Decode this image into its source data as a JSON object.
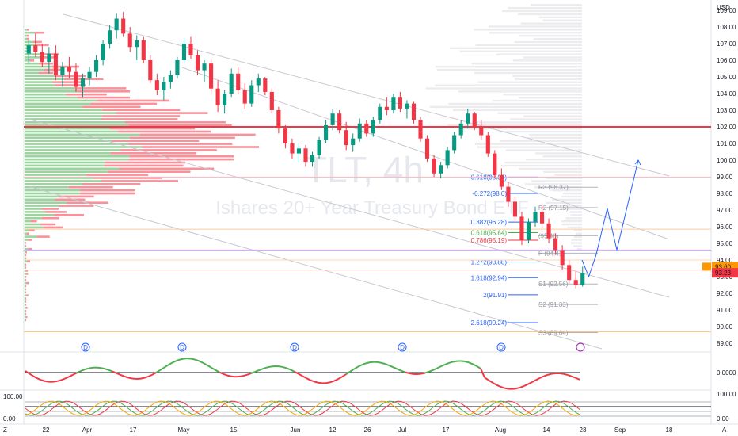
{
  "chart_data": {
    "type": "candlestick",
    "symbol_watermark": "TLT, 4h",
    "name_watermark": "Ishares 20+ Year Treasury Bond ETF",
    "currency": "USD",
    "price_ticks": [
      109.0,
      108.0,
      107.0,
      106.0,
      105.0,
      104.0,
      103.0,
      102.0,
      101.0,
      100.0,
      99.0,
      98.0,
      97.0,
      96.0,
      95.0,
      94.0,
      93.0,
      92.0,
      91.0,
      90.0,
      89.0
    ],
    "ylim": [
      88.5,
      110.0
    ],
    "time_labels": [
      "22",
      "Apr",
      "17",
      "May",
      "15",
      "Jun",
      "12",
      "26",
      "Jul",
      "17",
      "Aug",
      "14",
      "23",
      "Sep",
      "18"
    ],
    "time_label_positions_index": [
      0,
      1,
      2,
      3,
      4,
      5,
      6,
      7,
      8,
      9,
      10,
      11,
      12,
      13,
      14
    ],
    "resistance_line": 102.0,
    "last_price": 93.23,
    "pre_label": "93.60",
    "fib_levels": [
      {
        "label": "-0.618(98.98)",
        "value": 98.98,
        "color": "#2962ff"
      },
      {
        "label": "-0.272(98.0)",
        "value": 98.0,
        "color": "#2962ff"
      },
      {
        "label": "0.382(96.28)",
        "value": 96.28,
        "color": "#2962ff"
      },
      {
        "label": "0.618(95.64)",
        "value": 95.64,
        "color": "#4caf50"
      },
      {
        "label": "0.786(95.19)",
        "value": 95.19,
        "color": "#f23645"
      },
      {
        "label": "1.272(93.88)",
        "value": 93.88,
        "color": "#2962ff"
      },
      {
        "label": "1.618(92.94)",
        "value": 92.94,
        "color": "#2962ff"
      },
      {
        "label": "2(91.91)",
        "value": 91.91,
        "color": "#2962ff"
      },
      {
        "label": "2.618(90.24)",
        "value": 90.24,
        "color": "#2962ff"
      }
    ],
    "pivots": [
      {
        "label": "R3 (98.37)",
        "value": 98.37
      },
      {
        "label": "R2 (97.15)",
        "value": 97.15
      },
      {
        "label": "(95.46)",
        "value": 95.46
      },
      {
        "label": "P (94.41)",
        "value": 94.41
      },
      {
        "label": "S1 (92.56)",
        "value": 92.56
      },
      {
        "label": "S2 (91.33)",
        "value": 91.33
      },
      {
        "label": "S3 (89.64)",
        "value": 89.64
      }
    ],
    "candles": [
      [
        106.4,
        107.2,
        105.8,
        106.9
      ],
      [
        106.9,
        107.6,
        106.2,
        106.5
      ],
      [
        106.5,
        107.0,
        105.6,
        105.9
      ],
      [
        105.9,
        106.8,
        105.2,
        106.4
      ],
      [
        106.4,
        106.9,
        104.8,
        105.1
      ],
      [
        105.1,
        105.9,
        104.4,
        105.6
      ],
      [
        105.6,
        106.2,
        104.9,
        105.3
      ],
      [
        105.3,
        105.8,
        104.1,
        104.4
      ],
      [
        104.4,
        105.2,
        103.8,
        104.9
      ],
      [
        104.9,
        105.6,
        104.5,
        105.3
      ],
      [
        105.3,
        106.3,
        105.0,
        106.0
      ],
      [
        106.0,
        107.2,
        105.7,
        107.0
      ],
      [
        107.0,
        108.1,
        106.7,
        107.8
      ],
      [
        107.8,
        108.8,
        107.3,
        108.5
      ],
      [
        108.5,
        108.9,
        107.4,
        107.6
      ],
      [
        107.6,
        108.0,
        106.5,
        106.8
      ],
      [
        106.8,
        107.5,
        106.0,
        107.2
      ],
      [
        107.2,
        107.4,
        105.8,
        106.0
      ],
      [
        106.0,
        106.3,
        104.6,
        104.8
      ],
      [
        104.8,
        105.2,
        103.9,
        104.2
      ],
      [
        104.2,
        105.0,
        103.6,
        104.7
      ],
      [
        104.7,
        105.4,
        104.3,
        105.1
      ],
      [
        105.1,
        106.2,
        104.9,
        106.0
      ],
      [
        106.0,
        107.3,
        105.8,
        107.0
      ],
      [
        107.0,
        107.4,
        106.1,
        106.3
      ],
      [
        106.3,
        106.6,
        105.1,
        105.4
      ],
      [
        105.4,
        106.0,
        104.7,
        105.8
      ],
      [
        105.8,
        106.1,
        104.0,
        104.3
      ],
      [
        104.3,
        104.8,
        102.9,
        103.3
      ],
      [
        103.3,
        104.2,
        102.8,
        104.0
      ],
      [
        104.0,
        105.5,
        103.8,
        105.2
      ],
      [
        105.2,
        105.6,
        104.0,
        104.2
      ],
      [
        104.2,
        104.6,
        103.1,
        103.4
      ],
      [
        103.4,
        104.8,
        103.2,
        104.5
      ],
      [
        104.5,
        105.2,
        104.1,
        104.9
      ],
      [
        104.9,
        105.0,
        103.9,
        104.1
      ],
      [
        104.1,
        104.3,
        102.8,
        103.0
      ],
      [
        103.0,
        103.2,
        101.6,
        101.9
      ],
      [
        101.9,
        102.1,
        100.7,
        101.0
      ],
      [
        101.0,
        101.3,
        100.1,
        100.4
      ],
      [
        100.4,
        101.0,
        99.9,
        100.7
      ],
      [
        100.7,
        100.9,
        99.6,
        99.9
      ],
      [
        99.9,
        100.5,
        99.6,
        100.3
      ],
      [
        100.3,
        101.4,
        100.1,
        101.2
      ],
      [
        101.2,
        102.4,
        101.0,
        102.1
      ],
      [
        102.1,
        103.1,
        101.8,
        102.8
      ],
      [
        102.8,
        103.0,
        101.6,
        101.8
      ],
      [
        101.8,
        102.3,
        100.6,
        100.9
      ],
      [
        100.9,
        101.6,
        100.5,
        101.3
      ],
      [
        101.3,
        102.5,
        101.1,
        102.2
      ],
      [
        102.2,
        102.4,
        101.4,
        101.6
      ],
      [
        101.6,
        102.6,
        101.4,
        102.4
      ],
      [
        102.4,
        103.4,
        102.2,
        103.2
      ],
      [
        103.2,
        103.8,
        102.7,
        103.0
      ],
      [
        103.0,
        104.0,
        102.8,
        103.8
      ],
      [
        103.8,
        104.1,
        102.9,
        103.1
      ],
      [
        103.1,
        103.6,
        102.5,
        103.4
      ],
      [
        103.4,
        103.5,
        102.2,
        102.4
      ],
      [
        102.4,
        102.6,
        101.1,
        101.3
      ],
      [
        101.3,
        101.5,
        99.9,
        100.1
      ],
      [
        100.1,
        100.3,
        99.0,
        99.2
      ],
      [
        99.2,
        99.9,
        98.9,
        99.7
      ],
      [
        99.7,
        100.8,
        99.5,
        100.6
      ],
      [
        100.6,
        101.7,
        100.4,
        101.5
      ],
      [
        101.5,
        102.4,
        101.3,
        102.2
      ],
      [
        102.2,
        103.1,
        101.9,
        102.8
      ],
      [
        102.8,
        102.9,
        101.8,
        102.0
      ],
      [
        102.0,
        102.4,
        101.2,
        101.5
      ],
      [
        101.5,
        101.7,
        100.2,
        100.4
      ],
      [
        100.4,
        100.6,
        98.9,
        99.1
      ],
      [
        99.1,
        99.5,
        98.2,
        98.4
      ],
      [
        98.4,
        98.7,
        97.2,
        97.5
      ],
      [
        97.5,
        97.8,
        96.3,
        96.6
      ],
      [
        96.6,
        96.9,
        94.9,
        95.2
      ],
      [
        95.2,
        96.5,
        95.0,
        96.3
      ],
      [
        96.3,
        97.2,
        96.0,
        96.9
      ],
      [
        96.9,
        97.3,
        95.9,
        96.2
      ],
      [
        96.2,
        96.5,
        95.0,
        95.3
      ],
      [
        95.3,
        95.6,
        94.3,
        94.6
      ],
      [
        94.6,
        94.9,
        93.4,
        93.7
      ],
      [
        93.7,
        94.0,
        92.6,
        92.8
      ],
      [
        92.8,
        93.3,
        92.3,
        92.5
      ],
      [
        92.5,
        93.6,
        92.4,
        93.23
      ]
    ],
    "projection": [
      [
        0.0,
        94.0
      ],
      [
        0.12,
        93.0
      ],
      [
        0.25,
        94.3
      ],
      [
        0.45,
        97.1
      ],
      [
        0.62,
        94.6
      ],
      [
        1.0,
        100.0
      ]
    ],
    "rsi_ticks": [
      "0.0000",
      "100.00"
    ],
    "stoch_ticks": [
      "100.00",
      "0.00"
    ],
    "left_scale_ticks": [
      "100.00",
      "0.00"
    ],
    "bottom_letters": [
      "Z",
      "A"
    ]
  }
}
